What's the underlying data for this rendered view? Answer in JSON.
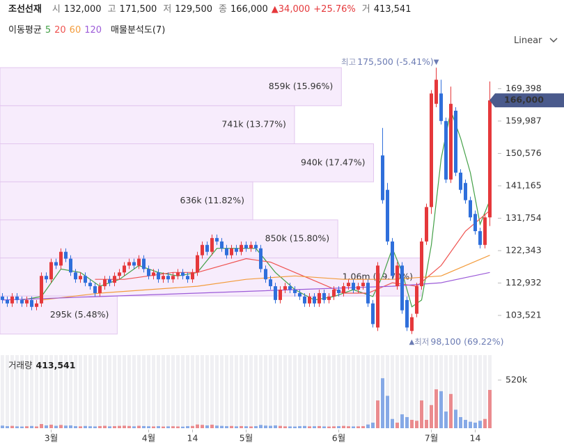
{
  "header": {
    "name": "조선선재",
    "fields": [
      {
        "label": "시",
        "value": "132,000"
      },
      {
        "label": "고",
        "value": "171,500"
      },
      {
        "label": "저",
        "value": "129,500"
      },
      {
        "label": "종",
        "value": "166,000"
      }
    ],
    "change": "▲34,000",
    "change_pct": "+25.76%",
    "volume": {
      "label": "거",
      "value": "413,541"
    }
  },
  "chart_data": {
    "type": "candlestick",
    "scale": "Linear",
    "categories": [
      null,
      null,
      null,
      null,
      null,
      null,
      null,
      null,
      null,
      null,
      "3월",
      null,
      null,
      null,
      null,
      null,
      null,
      null,
      null,
      null,
      null,
      null,
      null,
      null,
      null,
      null,
      null,
      null,
      null,
      null,
      "4월",
      null,
      null,
      null,
      null,
      null,
      null,
      null,
      null,
      "14",
      null,
      null,
      null,
      null,
      null,
      null,
      null,
      null,
      null,
      null,
      "5월",
      null,
      null,
      null,
      null,
      null,
      null,
      null,
      null,
      null,
      null,
      null,
      null,
      null,
      null,
      null,
      null,
      null,
      null,
      "6월",
      null,
      null,
      null,
      null,
      null,
      null,
      null,
      null,
      null,
      null,
      null,
      null,
      null,
      null,
      null,
      null,
      null,
      null,
      "7월",
      null,
      null,
      null,
      null,
      null,
      null,
      null,
      null,
      "14",
      null,
      null,
      null
    ],
    "open": [
      109000,
      108000,
      107000,
      109000,
      108000,
      107000,
      108000,
      106000,
      107000,
      115000,
      114000,
      119000,
      118000,
      122000,
      120000,
      116000,
      114000,
      115000,
      113000,
      112000,
      110000,
      112000,
      114000,
      113000,
      115000,
      116000,
      118000,
      119000,
      118000,
      120000,
      117000,
      115000,
      116000,
      114000,
      115000,
      114000,
      115000,
      116000,
      115000,
      114000,
      116000,
      121000,
      124000,
      122000,
      126000,
      125000,
      123000,
      121000,
      123000,
      122000,
      124000,
      123000,
      124000,
      123000,
      117000,
      114000,
      112000,
      108000,
      111000,
      112000,
      111000,
      110000,
      109000,
      107000,
      109000,
      107000,
      110000,
      108000,
      109000,
      111000,
      110000,
      112000,
      113000,
      111000,
      112000,
      113000,
      107000,
      100000,
      150000,
      140000,
      125000,
      112000,
      118000,
      108000,
      99000,
      104000,
      112000,
      125000,
      135000,
      165000,
      168000,
      160000,
      143000,
      163000,
      145000,
      142000,
      137000,
      133000,
      128000,
      124000,
      132000
    ],
    "high": [
      110000,
      109000,
      110000,
      110000,
      109000,
      109000,
      109000,
      108000,
      116000,
      116000,
      120000,
      120000,
      123000,
      123000,
      121000,
      117000,
      116000,
      116000,
      114000,
      113000,
      113000,
      115000,
      115000,
      116000,
      117000,
      119000,
      120000,
      120000,
      121000,
      121000,
      118000,
      117000,
      117000,
      116000,
      116000,
      116000,
      117000,
      117000,
      116000,
      117000,
      122000,
      125000,
      125000,
      127000,
      127000,
      126000,
      124000,
      124000,
      124000,
      125000,
      125000,
      125000,
      125000,
      124000,
      118000,
      115000,
      113000,
      112000,
      113000,
      113000,
      112000,
      111000,
      110000,
      110000,
      110000,
      111000,
      111000,
      110000,
      112000,
      112000,
      113000,
      114000,
      114000,
      113000,
      114000,
      114000,
      108000,
      119000,
      158000,
      142000,
      126000,
      119000,
      119000,
      109000,
      104000,
      113000,
      126000,
      136000,
      169000,
      175500,
      172000,
      161000,
      170000,
      164000,
      146000,
      143000,
      138000,
      134000,
      129000,
      133000,
      171500
    ],
    "low": [
      107000,
      106000,
      106000,
      107000,
      106000,
      106000,
      105000,
      105000,
      106000,
      113000,
      113000,
      117000,
      117000,
      119000,
      115000,
      113000,
      113000,
      112000,
      111000,
      109000,
      109000,
      111000,
      112000,
      112000,
      114000,
      115000,
      117000,
      117000,
      117000,
      116000,
      114000,
      114000,
      113000,
      113000,
      113000,
      113000,
      114000,
      114000,
      113000,
      113000,
      115000,
      120000,
      121000,
      121000,
      124000,
      122000,
      120000,
      120000,
      121000,
      121000,
      122000,
      122000,
      122000,
      116000,
      113000,
      111000,
      107000,
      107000,
      110000,
      110000,
      109000,
      108000,
      106000,
      106000,
      106000,
      106000,
      107000,
      107000,
      108000,
      109000,
      109000,
      111000,
      110000,
      110000,
      111000,
      106000,
      100000,
      99000,
      136000,
      124000,
      114000,
      111000,
      104000,
      99000,
      98100,
      103000,
      111000,
      124000,
      133000,
      164000,
      159000,
      142000,
      142000,
      144000,
      139000,
      136000,
      131000,
      127000,
      123000,
      123000,
      129500
    ],
    "close": [
      108000,
      107000,
      109000,
      108000,
      107000,
      108000,
      106000,
      107000,
      115000,
      114000,
      119000,
      118000,
      122000,
      120000,
      116000,
      114000,
      115000,
      113000,
      112000,
      110000,
      112000,
      114000,
      113000,
      115000,
      116000,
      118000,
      119000,
      118000,
      120000,
      117000,
      115000,
      116000,
      114000,
      115000,
      114000,
      115000,
      116000,
      115000,
      114000,
      116000,
      121000,
      124000,
      122000,
      126000,
      125000,
      123000,
      121000,
      123000,
      122000,
      124000,
      123000,
      124000,
      123000,
      117000,
      114000,
      112000,
      108000,
      111000,
      112000,
      111000,
      110000,
      109000,
      107000,
      109000,
      107000,
      110000,
      108000,
      109000,
      111000,
      110000,
      112000,
      113000,
      111000,
      112000,
      113000,
      107000,
      101000,
      118000,
      137000,
      125000,
      115000,
      118000,
      105000,
      100000,
      103000,
      112000,
      125000,
      135000,
      168000,
      172000,
      160000,
      143000,
      165000,
      145000,
      140000,
      137000,
      132000,
      128000,
      124000,
      132000,
      166000
    ],
    "up_color": "#e5383b",
    "down_color": "#2f6fdb",
    "ylim": [
      93000,
      181000
    ],
    "yticks": [
      {
        "value": 169398,
        "label": "169,398"
      },
      {
        "value": 159987,
        "label": "159,987"
      },
      {
        "value": 150576,
        "label": "150,576"
      },
      {
        "value": 141165,
        "label": "141,165"
      },
      {
        "value": 131754,
        "label": "131,754"
      },
      {
        "value": 122343,
        "label": "122,343"
      },
      {
        "value": 112932,
        "label": "112,932"
      },
      {
        "value": 103521,
        "label": "103,521"
      }
    ],
    "last_price": {
      "value": 166000,
      "label": "166,000",
      "color": "#4a5a8c"
    },
    "high_label": {
      "prefix": "최고",
      "text": "175,500 (-5.41%)",
      "marker": "▼"
    },
    "low_label": {
      "marker": "▲",
      "prefix": "최저",
      "text": "98,100 (69.22%)"
    },
    "ma_title": "이동평균",
    "series": [
      {
        "name": "5",
        "color": "#43a047",
        "x": [
          4,
          8,
          12,
          16,
          20,
          24,
          28,
          32,
          36,
          40,
          44,
          48,
          52,
          56,
          60,
          64,
          68,
          72,
          76,
          78,
          80,
          82,
          84,
          86,
          88,
          90,
          92,
          94,
          96,
          98,
          100
        ],
        "values": [
          108000,
          109000,
          117000,
          116000,
          112000,
          114000,
          118000,
          116000,
          115000,
          116000,
          123000,
          123000,
          123000,
          116000,
          111000,
          108000,
          109000,
          111000,
          109000,
          115000,
          123000,
          116000,
          106000,
          108000,
          124000,
          149000,
          163000,
          155000,
          145000,
          130000,
          137000
        ]
      },
      {
        "name": "20",
        "color": "#ef5350",
        "x": [
          19,
          25,
          30,
          35,
          40,
          45,
          50,
          55,
          60,
          65,
          70,
          75,
          80,
          85,
          90,
          95,
          100
        ],
        "values": [
          114000,
          114000,
          115000,
          116000,
          116000,
          118000,
          120000,
          119000,
          116000,
          113000,
          110000,
          110000,
          113000,
          112000,
          118000,
          128000,
          134000
        ]
      },
      {
        "name": "60",
        "color": "#f39c3c",
        "x": [
          8,
          20,
          30,
          40,
          50,
          60,
          70,
          80,
          90,
          95,
          100
        ],
        "values": [
          108000,
          110000,
          111000,
          112000,
          114000,
          115000,
          114000,
          114000,
          115000,
          118000,
          121000
        ]
      },
      {
        "name": "120",
        "color": "#9c5bd8",
        "x": [
          0,
          20,
          40,
          60,
          80,
          90,
          100
        ],
        "values": [
          108000,
          109000,
          110000,
          111000,
          112000,
          113000,
          116000
        ]
      }
    ],
    "volume_profile": {
      "title": "매물분석도(7)",
      "color": "#f6e9fb",
      "edge_color": "#e2c6ee",
      "xlim": [
        0,
        1060000
      ],
      "ranges": [
        [
          164443,
          175500
        ],
        [
          153386,
          164443
        ],
        [
          142329,
          153386
        ],
        [
          131271,
          142329
        ],
        [
          120214,
          131271
        ],
        [
          109157,
          120214
        ],
        [
          98100,
          109157
        ]
      ],
      "values": [
        859000,
        741000,
        940000,
        636000,
        850000,
        1060000,
        295000
      ],
      "value_labels": [
        "859k (15.96%)",
        "741k (13.77%)",
        "940k (17.47%)",
        "636k (11.82%)",
        "850k (15.80%)",
        "1.06m (19.70%)",
        "295k (5.48%)"
      ]
    },
    "volume": {
      "title": "거래량",
      "value_label": "413,541",
      "ylim": [
        0,
        790000
      ],
      "yticks": [
        {
          "value": 520000,
          "label": "520k"
        }
      ],
      "values": [
        28000,
        22000,
        25000,
        20000,
        18000,
        21000,
        24000,
        19000,
        45000,
        30000,
        38000,
        26000,
        35000,
        28000,
        30000,
        22000,
        20000,
        24000,
        21000,
        19000,
        23000,
        26000,
        20000,
        22000,
        25000,
        27000,
        24000,
        20000,
        26000,
        23000,
        21000,
        19000,
        22000,
        18000,
        20000,
        21000,
        19000,
        17000,
        22000,
        24000,
        40000,
        36000,
        30000,
        38000,
        28000,
        25000,
        22000,
        24000,
        20000,
        23000,
        21000,
        19000,
        22000,
        35000,
        28000,
        26000,
        30000,
        25000,
        20000,
        19000,
        18000,
        22000,
        24000,
        20000,
        21000,
        23000,
        19000,
        18000,
        20000,
        22000,
        25000,
        21000,
        19000,
        20000,
        22000,
        40000,
        60000,
        300000,
        540000,
        350000,
        100000,
        60000,
        150000,
        120000,
        90000,
        80000,
        300000,
        90000,
        250000,
        420000,
        400000,
        180000,
        370000,
        200000,
        120000,
        90000,
        70000,
        60000,
        80000,
        100000,
        413541
      ]
    }
  }
}
